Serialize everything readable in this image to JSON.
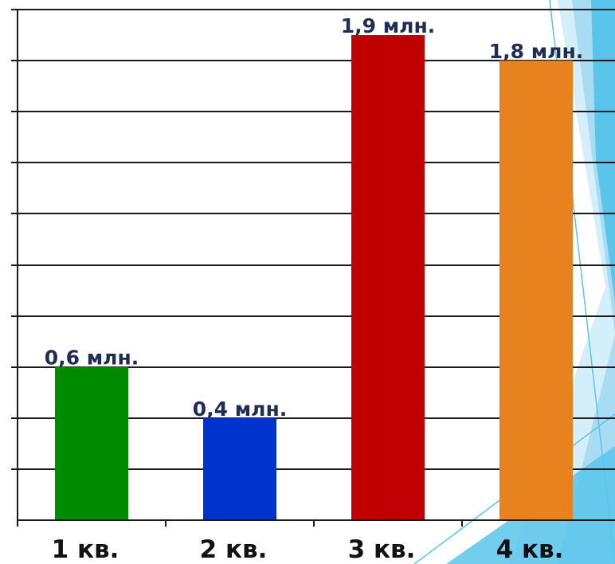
{
  "chart_data": {
    "type": "bar",
    "categories": [
      "1 кв.",
      "2 кв.",
      "3 кв.",
      "4 кв."
    ],
    "values": [
      0.6,
      0.4,
      1.9,
      1.8
    ],
    "data_labels": [
      "0,6 млн.",
      "0,4 млн.",
      "1,9 млн.",
      "1,8 млн."
    ],
    "colors": [
      "#008c00",
      "#0033cc",
      "#c00000",
      "#e8821e"
    ],
    "ylim": [
      0,
      2.0
    ],
    "grid": true,
    "legend": "none"
  },
  "decor": {
    "accent_colors": [
      "#5bc4ea",
      "#a9dcf3",
      "#d4effa"
    ]
  }
}
